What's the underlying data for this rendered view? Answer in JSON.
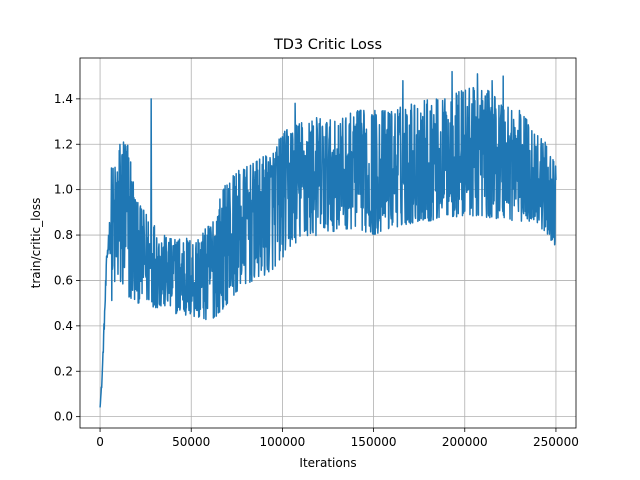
{
  "chart_data": {
    "type": "line",
    "title": "TD3 Critic Loss",
    "xlabel": "Iterations",
    "ylabel": "train/critic_loss",
    "xlim": [
      -11000,
      261000
    ],
    "ylim": [
      -0.05,
      1.58
    ],
    "xticks": [
      0,
      50000,
      100000,
      150000,
      200000,
      250000
    ],
    "yticks": [
      0.0,
      0.2,
      0.4,
      0.6,
      0.8,
      1.0,
      1.2,
      1.4
    ],
    "grid": true,
    "legend": "none",
    "series": [
      {
        "color": "#1f77b4",
        "profile": {
          "x": [
            0,
            1000,
            2000,
            3000,
            4000,
            5000,
            6000,
            8000,
            10000,
            13000,
            16000,
            20000,
            25000,
            30000,
            35000,
            40000,
            45000,
            50000,
            55000,
            60000,
            65000,
            70000,
            75000,
            80000,
            85000,
            90000,
            95000,
            100000,
            105000,
            110000,
            120000,
            130000,
            140000,
            150000,
            160000,
            170000,
            180000,
            190000,
            200000,
            210000,
            220000,
            230000,
            240000,
            245000,
            250000
          ],
          "low": [
            0.03,
            0.1,
            0.25,
            0.4,
            0.5,
            0.55,
            0.5,
            0.55,
            0.55,
            0.55,
            0.5,
            0.5,
            0.5,
            0.48,
            0.48,
            0.46,
            0.44,
            0.44,
            0.43,
            0.42,
            0.45,
            0.5,
            0.55,
            0.58,
            0.6,
            0.62,
            0.65,
            0.7,
            0.75,
            0.78,
            0.8,
            0.82,
            0.83,
            0.8,
            0.83,
            0.85,
            0.86,
            0.88,
            0.88,
            0.88,
            0.87,
            0.86,
            0.85,
            0.8,
            0.75
          ],
          "high": [
            0.06,
            0.2,
            0.45,
            0.7,
            0.95,
            1.05,
            1.1,
            1.1,
            1.2,
            1.25,
            1.2,
            0.95,
            0.9,
            0.85,
            0.8,
            0.78,
            0.8,
            0.78,
            0.8,
            0.85,
            0.95,
            1.05,
            1.08,
            1.1,
            1.12,
            1.15,
            1.18,
            1.25,
            1.28,
            1.3,
            1.32,
            1.3,
            1.35,
            1.35,
            1.35,
            1.38,
            1.4,
            1.4,
            1.45,
            1.45,
            1.4,
            1.35,
            1.25,
            1.2,
            1.1
          ]
        },
        "spikes": [
          {
            "x": 28000,
            "y": 1.4
          },
          {
            "x": 107000,
            "y": 1.38
          },
          {
            "x": 166000,
            "y": 1.48
          },
          {
            "x": 193000,
            "y": 1.52
          },
          {
            "x": 207000,
            "y": 1.51
          },
          {
            "x": 215000,
            "y": 1.48
          },
          {
            "x": 221000,
            "y": 1.5
          }
        ],
        "samples": 1400
      }
    ]
  }
}
